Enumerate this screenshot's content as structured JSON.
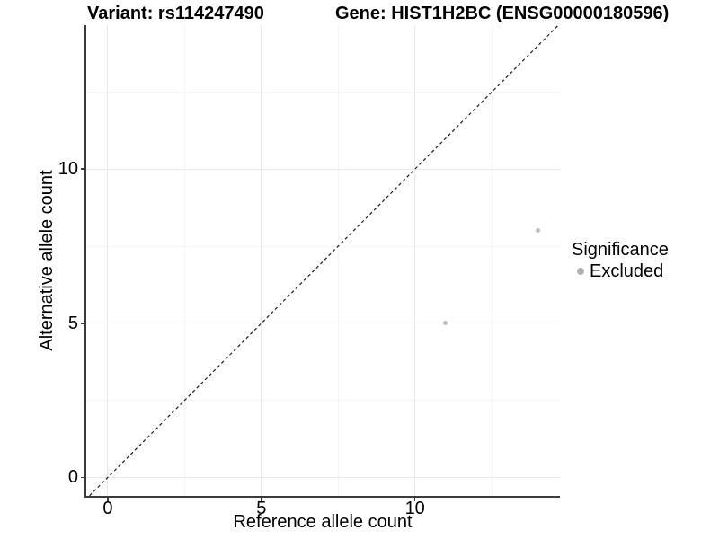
{
  "header": {
    "variant_title": "Variant: rs114247490",
    "gene_title": "Gene: HIST1H2BC (ENSG00000180596)"
  },
  "chart_data": {
    "type": "scatter",
    "title": "Variant: rs114247490 | Gene: HIST1H2BC (ENSG00000180596)",
    "xlabel": "Reference allele count",
    "ylabel": "Alternative allele count",
    "xlim": [
      -0.73,
      14.72
    ],
    "ylim": [
      -0.63,
      14.67
    ],
    "x_ticks": [
      0,
      5,
      10
    ],
    "y_ticks": [
      0,
      5,
      10
    ],
    "x_minor_ticks": [
      2.5,
      7.5,
      12.5
    ],
    "y_minor_ticks": [
      2.5,
      7.5,
      12.5
    ],
    "grid": true,
    "series": [
      {
        "name": "Excluded",
        "points": [
          {
            "x": 11,
            "y": 5
          },
          {
            "x": 14,
            "y": 8
          }
        ]
      }
    ],
    "identity_line": {
      "slope": 1,
      "intercept": 0,
      "style": "dashed",
      "color": "#1a1a1a"
    },
    "legend": {
      "title": "Significance",
      "position": "right",
      "items": [
        {
          "label": "Excluded",
          "color": "#b3b3b3"
        }
      ]
    },
    "colors": {
      "point_excluded": "#bdbdbd",
      "grid_major": "#e9e9e9",
      "grid_minor": "#f4f4f4",
      "axis_line": "#3a3a3a",
      "background": "#ffffff"
    }
  }
}
